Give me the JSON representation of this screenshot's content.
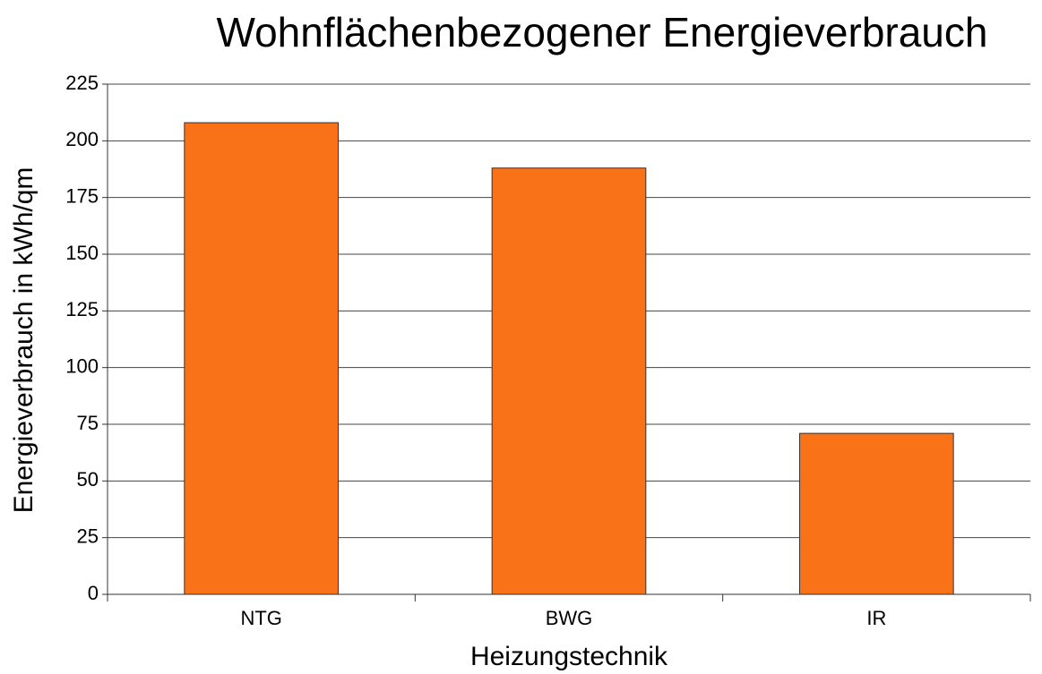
{
  "chart_data": {
    "type": "bar",
    "title": "Wohnflächenbezogener Energieverbrauch",
    "x_label": "Heizungstechnik",
    "y_label": "Energieverbrauch in kWh/qm",
    "categories": [
      "NTG",
      "BWG",
      "IR"
    ],
    "values": [
      208,
      188,
      71
    ],
    "color": "#fa7218",
    "ylim": [
      0,
      225
    ],
    "yticks": [
      0,
      25,
      50,
      75,
      100,
      125,
      150,
      175,
      200,
      225
    ],
    "grid": true
  }
}
